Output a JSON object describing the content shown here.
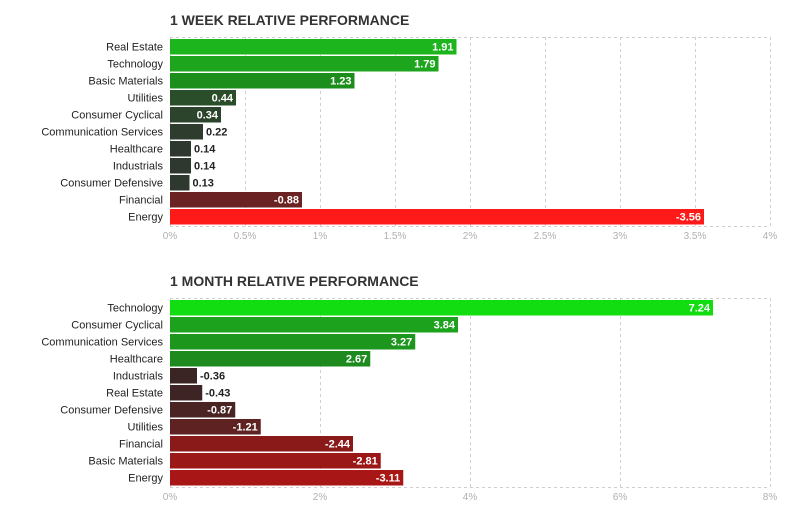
{
  "chart_data": [
    {
      "type": "bar",
      "orientation": "horizontal",
      "title": "1 WEEK RELATIVE PERFORMANCE",
      "categories": [
        "Real Estate",
        "Technology",
        "Basic Materials",
        "Utilities",
        "Consumer Cyclical",
        "Communication Services",
        "Healthcare",
        "Industrials",
        "Consumer Defensive",
        "Financial",
        "Energy"
      ],
      "values": [
        1.91,
        1.79,
        1.23,
        0.44,
        0.34,
        0.22,
        0.14,
        0.14,
        0.13,
        -0.88,
        -3.56
      ],
      "value_labels": [
        "1.91",
        "1.79",
        "1.23",
        "0.44",
        "0.34",
        "0.22",
        "0.14",
        "0.14",
        "0.13",
        "-0.88",
        "-3.56"
      ],
      "bar_colors": [
        "#1db51d",
        "#1ea51e",
        "#1c8e1c",
        "#2a4e2a",
        "#2c442c",
        "#2d3c2d",
        "#2e382e",
        "#2e382e",
        "#2e382e",
        "#6b2222",
        "#ff1a1a"
      ],
      "xlim": [
        0,
        4
      ],
      "ticks": [
        0,
        0.5,
        1,
        1.5,
        2,
        2.5,
        3,
        3.5,
        4
      ],
      "tick_labels": [
        "0%",
        "0.5%",
        "1%",
        "1.5%",
        "2%",
        "2.5%",
        "3%",
        "3.5%",
        "4%"
      ],
      "scale": "absolute-magnitude",
      "grid": true
    },
    {
      "type": "bar",
      "orientation": "horizontal",
      "title": "1 MONTH RELATIVE PERFORMANCE",
      "categories": [
        "Technology",
        "Consumer Cyclical",
        "Communication Services",
        "Healthcare",
        "Industrials",
        "Real Estate",
        "Consumer Defensive",
        "Utilities",
        "Financial",
        "Basic Materials",
        "Energy"
      ],
      "values": [
        7.24,
        3.84,
        3.27,
        2.67,
        -0.36,
        -0.43,
        -0.87,
        -1.21,
        -2.44,
        -2.81,
        -3.11
      ],
      "value_labels": [
        "7.24",
        "3.84",
        "3.27",
        "2.67",
        "-0.36",
        "-0.43",
        "-0.87",
        "-1.21",
        "-2.44",
        "-2.81",
        "-3.11"
      ],
      "bar_colors": [
        "#11dd11",
        "#1ca21c",
        "#1c961c",
        "#1d8a1d",
        "#3a2424",
        "#3e2424",
        "#4a2323",
        "#5e2222",
        "#8a1a1a",
        "#9a1818",
        "#a81616"
      ],
      "xlim": [
        0,
        8
      ],
      "ticks": [
        0,
        2,
        4,
        6,
        8
      ],
      "tick_labels": [
        "0%",
        "2%",
        "4%",
        "6%",
        "8%"
      ],
      "scale": "absolute-magnitude",
      "grid": true
    }
  ]
}
